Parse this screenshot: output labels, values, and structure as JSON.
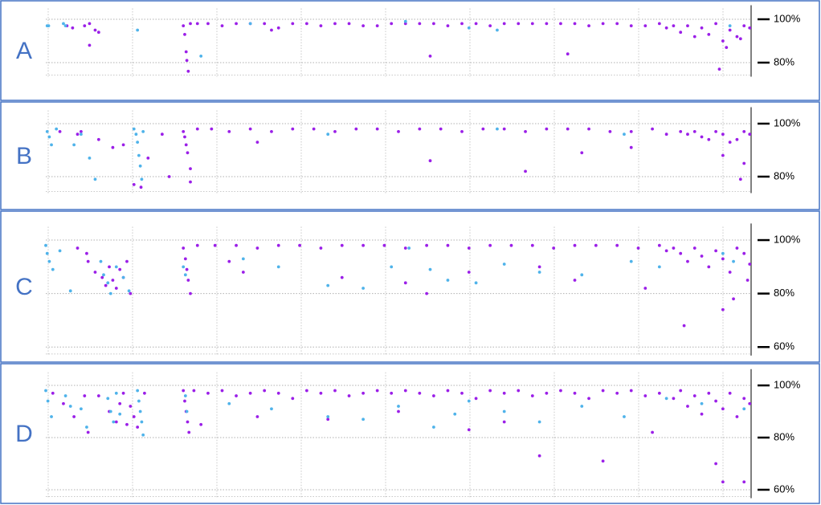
{
  "chart_data": [
    {
      "type": "scatter",
      "label": "A",
      "xlim": [
        0,
        1000
      ],
      "ylim": [
        75,
        105
      ],
      "yticks": [
        {
          "value": 100,
          "label": "100%"
        },
        {
          "value": 80,
          "label": "80%"
        }
      ],
      "grid": true,
      "series": [
        {
          "color": "#9b1fe8",
          "x": [
            30,
            38,
            55,
            62,
            70,
            195,
            197,
            199,
            202,
            205,
            215,
            230,
            250,
            270,
            290,
            310,
            330,
            350,
            370,
            390,
            410,
            430,
            450,
            470,
            490,
            510,
            530,
            550,
            570,
            590,
            610,
            630,
            650,
            670,
            690,
            710,
            730,
            750,
            770,
            790,
            810,
            830,
            850,
            870,
            880,
            890,
            900,
            910,
            920,
            930,
            940,
            950,
            960,
            970,
            980,
            990,
            998,
            200,
            320,
            545,
            740,
            955,
            965,
            985,
            62,
            75
          ],
          "values": [
            97,
            96,
            97,
            98,
            95,
            97,
            93,
            85,
            76,
            98,
            98,
            98,
            97,
            98,
            98,
            98,
            96,
            98,
            98,
            97,
            98,
            98,
            97,
            97,
            98,
            98,
            98,
            98,
            97,
            98,
            98,
            97,
            98,
            98,
            98,
            98,
            98,
            98,
            97,
            98,
            98,
            97,
            97,
            98,
            96,
            97,
            94,
            97,
            92,
            96,
            93,
            98,
            90,
            95,
            92,
            97,
            96,
            81,
            95,
            83,
            84,
            77,
            87,
            91,
            88,
            94
          ]
        },
        {
          "color": "#4fb3ea",
          "x": [
            2,
            4,
            25,
            28,
            130,
            220,
            290,
            510,
            640,
            600,
            970
          ],
          "values": [
            97,
            97,
            98,
            97,
            95,
            83,
            98,
            99,
            95,
            96,
            97
          ]
        }
      ]
    },
    {
      "type": "scatter",
      "label": "B",
      "xlim": [
        0,
        1000
      ],
      "ylim": [
        75,
        105
      ],
      "yticks": [
        {
          "value": 100,
          "label": "100%"
        },
        {
          "value": 80,
          "label": "80%"
        }
      ],
      "grid": true,
      "series": [
        {
          "color": "#9b1fe8",
          "x": [
            20,
            45,
            50,
            75,
            95,
            110,
            125,
            135,
            145,
            165,
            175,
            195,
            197,
            199,
            201,
            205,
            215,
            235,
            260,
            290,
            320,
            350,
            380,
            410,
            440,
            470,
            500,
            530,
            560,
            590,
            620,
            650,
            680,
            710,
            740,
            770,
            800,
            830,
            860,
            880,
            900,
            910,
            920,
            930,
            940,
            950,
            960,
            970,
            980,
            990,
            998,
            205,
            300,
            545,
            680,
            760,
            830,
            960,
            985,
            990
          ],
          "values": [
            97,
            96,
            97,
            94,
            91,
            92,
            77,
            76,
            87,
            96,
            80,
            97,
            95,
            92,
            89,
            83,
            98,
            98,
            97,
            98,
            97,
            98,
            98,
            97,
            98,
            98,
            97,
            98,
            98,
            97,
            98,
            98,
            97,
            98,
            98,
            98,
            97,
            97,
            98,
            96,
            97,
            96,
            97,
            95,
            94,
            97,
            96,
            93,
            94,
            97,
            96,
            78,
            93,
            86,
            82,
            89,
            91,
            88,
            79,
            85
          ]
        },
        {
          "color": "#4fb3ea",
          "x": [
            2,
            5,
            8,
            15,
            40,
            50,
            62,
            70,
            125,
            128,
            130,
            132,
            134,
            136,
            138,
            400,
            640,
            820
          ],
          "values": [
            97,
            95,
            92,
            98,
            92,
            96,
            87,
            79,
            98,
            96,
            93,
            88,
            84,
            79,
            97,
            96,
            98,
            96
          ]
        }
      ]
    },
    {
      "type": "scatter",
      "label": "C",
      "xlim": [
        0,
        1000
      ],
      "ylim": [
        58,
        105
      ],
      "yticks": [
        {
          "value": 100,
          "label": "100%"
        },
        {
          "value": 80,
          "label": "80%"
        },
        {
          "value": 60,
          "label": "60%"
        }
      ],
      "grid": true,
      "series": [
        {
          "color": "#9b1fe8",
          "x": [
            45,
            58,
            60,
            70,
            80,
            85,
            90,
            95,
            100,
            105,
            110,
            115,
            120,
            195,
            198,
            200,
            202,
            205,
            215,
            240,
            270,
            300,
            330,
            360,
            390,
            420,
            450,
            480,
            510,
            540,
            570,
            600,
            630,
            660,
            690,
            720,
            750,
            780,
            810,
            840,
            870,
            880,
            890,
            900,
            910,
            920,
            930,
            940,
            950,
            960,
            970,
            980,
            990,
            998,
            280,
            420,
            510,
            600,
            700,
            750,
            850,
            905,
            960,
            975,
            995,
            260,
            540
          ],
          "values": [
            97,
            95,
            92,
            88,
            86,
            83,
            90,
            85,
            82,
            89,
            86,
            92,
            80,
            97,
            93,
            89,
            85,
            80,
            98,
            98,
            98,
            97,
            98,
            98,
            97,
            98,
            98,
            98,
            97,
            98,
            98,
            97,
            98,
            98,
            98,
            97,
            98,
            98,
            98,
            97,
            98,
            96,
            97,
            95,
            92,
            97,
            94,
            90,
            96,
            93,
            88,
            97,
            95,
            91,
            88,
            86,
            84,
            88,
            90,
            85,
            82,
            68,
            74,
            78,
            85,
            92,
            80
          ]
        },
        {
          "color": "#4fb3ea",
          "x": [
            0,
            2,
            5,
            10,
            20,
            35,
            78,
            82,
            88,
            92,
            100,
            110,
            118,
            195,
            198,
            280,
            330,
            400,
            450,
            490,
            515,
            545,
            570,
            610,
            650,
            700,
            760,
            830,
            870,
            960,
            975
          ],
          "values": [
            98,
            95,
            92,
            89,
            96,
            81,
            92,
            87,
            84,
            80,
            90,
            86,
            81,
            90,
            87,
            93,
            90,
            83,
            82,
            90,
            97,
            89,
            85,
            84,
            91,
            88,
            87,
            92,
            90,
            95,
            92
          ]
        }
      ]
    },
    {
      "type": "scatter",
      "label": "D",
      "xlim": [
        0,
        1000
      ],
      "ylim": [
        58,
        105
      ],
      "yticks": [
        {
          "value": 100,
          "label": "100%"
        },
        {
          "value": 80,
          "label": "80%"
        },
        {
          "value": 60,
          "label": "60%"
        }
      ],
      "grid": true,
      "series": [
        {
          "color": "#9b1fe8",
          "x": [
            10,
            25,
            40,
            55,
            60,
            75,
            90,
            100,
            105,
            110,
            115,
            120,
            125,
            130,
            140,
            195,
            197,
            199,
            201,
            203,
            210,
            230,
            250,
            270,
            290,
            310,
            330,
            350,
            370,
            390,
            410,
            430,
            450,
            470,
            490,
            510,
            530,
            550,
            570,
            590,
            610,
            630,
            650,
            670,
            690,
            710,
            730,
            750,
            770,
            790,
            810,
            830,
            850,
            870,
            890,
            900,
            910,
            920,
            930,
            940,
            950,
            960,
            970,
            980,
            990,
            998,
            220,
            300,
            400,
            500,
            600,
            650,
            700,
            790,
            860,
            950,
            960,
            990
          ],
          "values": [
            97,
            93,
            88,
            96,
            82,
            96,
            90,
            86,
            93,
            97,
            85,
            92,
            88,
            84,
            97,
            98,
            94,
            90,
            86,
            82,
            98,
            97,
            98,
            96,
            97,
            98,
            97,
            95,
            98,
            97,
            98,
            96,
            97,
            98,
            97,
            98,
            97,
            96,
            98,
            97,
            95,
            98,
            97,
            98,
            96,
            97,
            98,
            97,
            95,
            98,
            97,
            98,
            96,
            97,
            95,
            98,
            92,
            96,
            89,
            97,
            94,
            91,
            97,
            88,
            95,
            93,
            85,
            88,
            87,
            90,
            83,
            86,
            73,
            71,
            82,
            70,
            63,
            63
          ]
        },
        {
          "color": "#4fb3ea",
          "x": [
            0,
            3,
            8,
            28,
            35,
            50,
            58,
            88,
            92,
            96,
            100,
            105,
            130,
            132,
            134,
            136,
            138,
            198,
            200,
            260,
            320,
            400,
            450,
            500,
            550,
            580,
            600,
            650,
            700,
            760,
            820,
            880,
            930,
            990
          ],
          "values": [
            98,
            94,
            88,
            96,
            92,
            91,
            84,
            95,
            90,
            86,
            97,
            89,
            98,
            94,
            90,
            86,
            81,
            96,
            90,
            93,
            91,
            88,
            87,
            92,
            84,
            89,
            94,
            90,
            86,
            92,
            88,
            95,
            93,
            91
          ]
        }
      ]
    }
  ]
}
